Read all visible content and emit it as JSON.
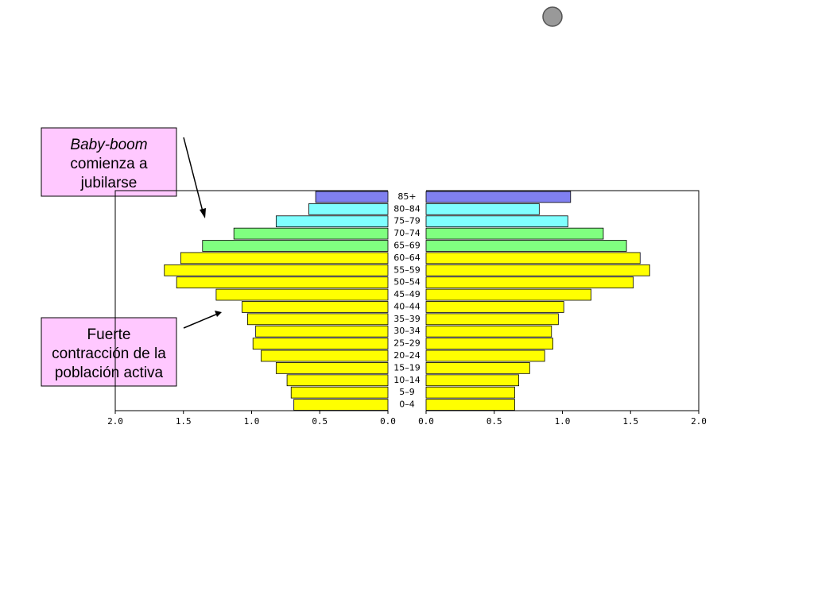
{
  "chart_data": {
    "type": "pyramid",
    "categories": [
      "85+",
      "80–84",
      "75–79",
      "70–74",
      "65–69",
      "60–64",
      "55–59",
      "50–54",
      "45–49",
      "40–44",
      "35–39",
      "30–34",
      "25–29",
      "20–24",
      "15–19",
      "10–14",
      "5–9",
      "0–4"
    ],
    "colors": [
      "#8080f0",
      "#80ffff",
      "#80ffff",
      "#80ff80",
      "#80ff80",
      "#ffff00",
      "#ffff00",
      "#ffff00",
      "#ffff00",
      "#ffff00",
      "#ffff00",
      "#ffff00",
      "#ffff00",
      "#ffff00",
      "#ffff00",
      "#ffff00",
      "#ffff00",
      "#ffff00"
    ],
    "series": [
      {
        "values": [
          0.53,
          0.58,
          0.82,
          1.13,
          1.36,
          1.52,
          1.64,
          1.55,
          1.26,
          1.07,
          1.03,
          0.97,
          0.99,
          0.93,
          0.82,
          0.74,
          0.71,
          0.69
        ]
      },
      {
        "values": [
          1.06,
          0.83,
          1.04,
          1.3,
          1.47,
          1.57,
          1.64,
          1.52,
          1.21,
          1.01,
          0.97,
          0.92,
          0.93,
          0.87,
          0.76,
          0.68,
          0.65,
          0.65
        ]
      }
    ],
    "xlim": [
      0,
      2
    ],
    "xticks": [
      {
        "value": 0,
        "label": "0.0"
      },
      {
        "value": 0.5,
        "label": "0.5"
      },
      {
        "value": 1,
        "label": "1.0"
      },
      {
        "value": 1.5,
        "label": "1.5"
      },
      {
        "value": 2,
        "label": "2.0"
      }
    ],
    "annotations": [
      {
        "lines": [
          "Baby-boom",
          "comienza a",
          "jubilarse"
        ]
      },
      {
        "lines": [
          "Fuerte",
          "contracción de la",
          "población activa"
        ]
      }
    ]
  }
}
